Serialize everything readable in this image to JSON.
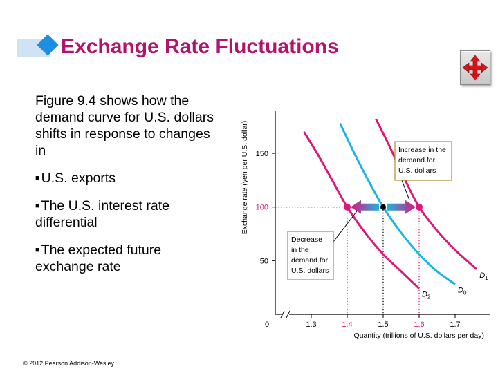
{
  "slide": {
    "title": "Exchange Rate Fluctuations",
    "intro": "Figure 9.4 shows how the demand curve for U.S. dollars shifts in response to changes in",
    "bullets": [
      "U.S. exports",
      "The U.S. interest rate differential",
      "The expected future exchange rate"
    ],
    "footer": "© 2012 Pearson Addison-Wesley",
    "nav_icon": "four-arrows-icon"
  },
  "colors": {
    "title": "#b01470",
    "d0": "#1ab3e6",
    "shifted": "#e0157a",
    "annotation_box": "#ffffff",
    "annotation_border": "#b38b26"
  },
  "chart_data": {
    "type": "line",
    "xlabel": "Quantity (trillions of U.S. dollars per day)",
    "ylabel": "Exchange rate (yen per U.S. dollar)",
    "x_ticks": [
      {
        "label": "1.3",
        "value": 1.3
      },
      {
        "label": "1.4",
        "value": 1.4,
        "highlight": true
      },
      {
        "label": "1.5",
        "value": 1.5
      },
      {
        "label": "1.6",
        "value": 1.6,
        "highlight": true
      },
      {
        "label": "1.7",
        "value": 1.7
      }
    ],
    "y_ticks": [
      {
        "label": "50",
        "value": 50
      },
      {
        "label": "100",
        "value": 100,
        "highlight": true
      },
      {
        "label": "150",
        "value": 150
      }
    ],
    "origin_label": "0",
    "xlim": [
      1.2,
      1.8
    ],
    "ylim": [
      0,
      190
    ],
    "axis_break": true,
    "series": [
      {
        "name": "D0",
        "label_main": "D",
        "label_sub": "0",
        "color_key": "d0",
        "points": [
          [
            1.38,
            178
          ],
          [
            1.42,
            150
          ],
          [
            1.46,
            124
          ],
          [
            1.5,
            100
          ],
          [
            1.55,
            76
          ],
          [
            1.6,
            56
          ],
          [
            1.65,
            40
          ],
          [
            1.7,
            28
          ]
        ]
      },
      {
        "name": "D1",
        "label_main": "D",
        "label_sub": "1",
        "color_key": "shifted",
        "points": [
          [
            1.48,
            182
          ],
          [
            1.52,
            155
          ],
          [
            1.56,
            126
          ],
          [
            1.6,
            100
          ],
          [
            1.65,
            78
          ],
          [
            1.7,
            60
          ],
          [
            1.76,
            42
          ]
        ]
      },
      {
        "name": "D2",
        "label_main": "D",
        "label_sub": "2",
        "color_key": "shifted",
        "points": [
          [
            1.28,
            170
          ],
          [
            1.32,
            148
          ],
          [
            1.36,
            124
          ],
          [
            1.4,
            100
          ],
          [
            1.45,
            76
          ],
          [
            1.5,
            56
          ],
          [
            1.55,
            40
          ],
          [
            1.6,
            24
          ]
        ]
      }
    ],
    "points": [
      {
        "x": 1.4,
        "y": 100,
        "color_key": "shifted"
      },
      {
        "x": 1.5,
        "y": 100,
        "color_key": "black"
      },
      {
        "x": 1.6,
        "y": 100,
        "color_key": "shifted"
      }
    ],
    "annotations": [
      {
        "text": [
          "Increase in the",
          "demand for",
          "U.S. dollars"
        ],
        "points_to": [
          1.6,
          100
        ]
      },
      {
        "text": [
          "Decrease",
          "in the",
          "demand for",
          "U.S. dollars"
        ],
        "points_to": [
          1.4,
          100
        ]
      }
    ]
  }
}
